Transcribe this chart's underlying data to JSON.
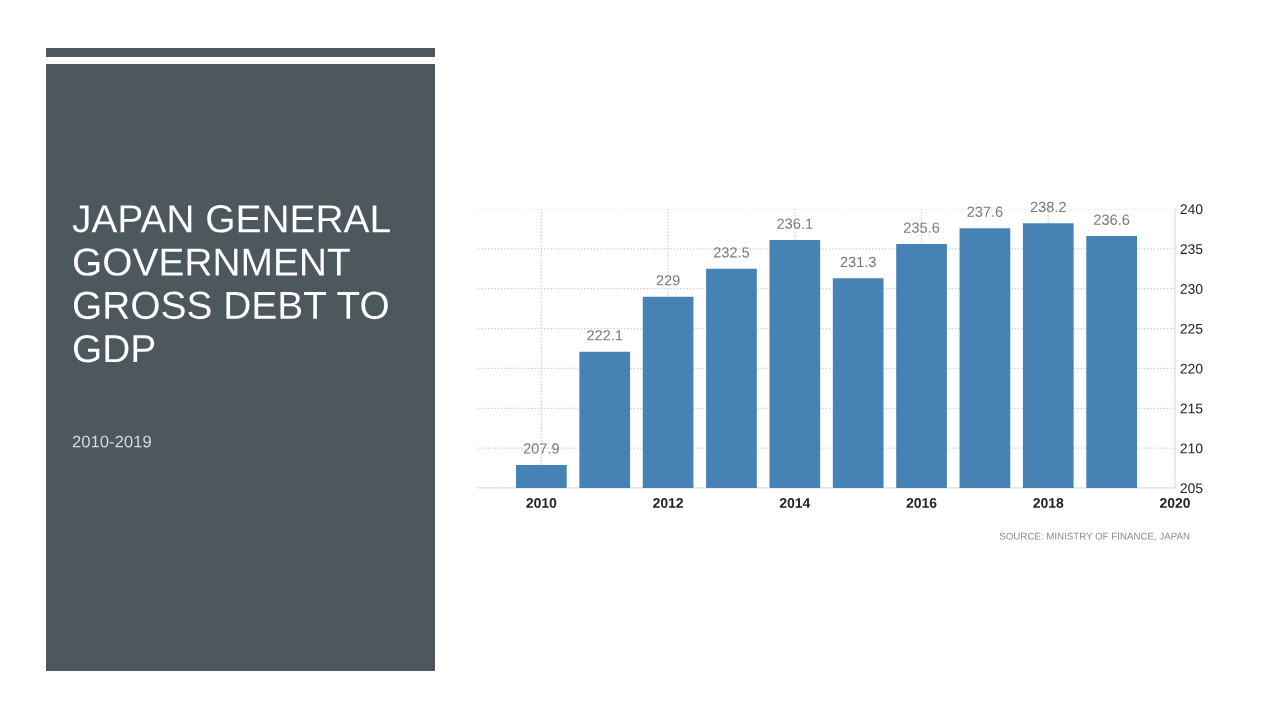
{
  "chart_data": {
    "type": "bar",
    "title": "JAPAN GENERAL\nGOVERNMENT\nGROSS DEBT TO\nGDP",
    "subtitle": "2010-2019",
    "x": [
      2010,
      2011,
      2012,
      2013,
      2014,
      2015,
      2016,
      2017,
      2018,
      2019
    ],
    "values": [
      207.9,
      222.1,
      229,
      232.5,
      236.1,
      231.3,
      235.6,
      237.6,
      238.2,
      236.6
    ],
    "color": "#4682b4",
    "xlim": [
      2009,
      2020
    ],
    "xticks": [
      2010,
      2012,
      2014,
      2016,
      2018,
      2020
    ],
    "ylim": [
      205,
      240
    ],
    "yticks": [
      205,
      210,
      215,
      220,
      225,
      230,
      235,
      240
    ],
    "grid": true,
    "data_labels": true,
    "annotations": [
      "SOURCE: MINISTRY OF FINANCE, JAPAN"
    ]
  }
}
